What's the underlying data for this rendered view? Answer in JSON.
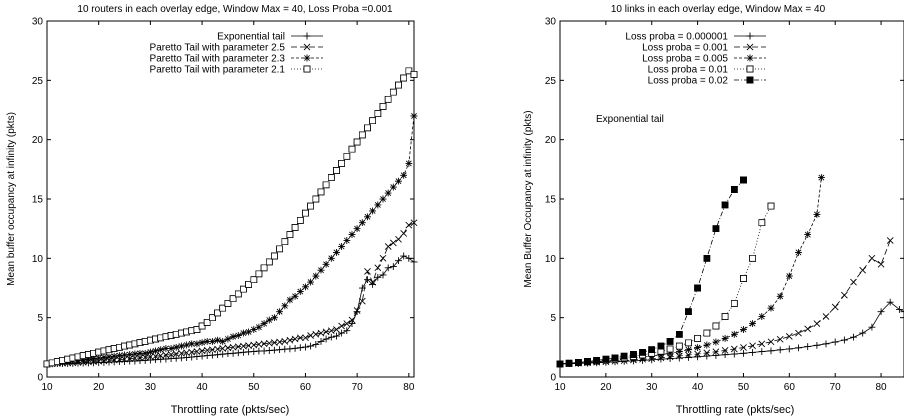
{
  "chart_data": [
    {
      "type": "line",
      "title": "10 routers in each overlay edge, Window Max = 40, Loss Proba =0.001",
      "xlabel": "Throttling rate (pkts/sec)",
      "ylabel": "Mean buffer occupancy at infinity (pkts)",
      "xlim": [
        10,
        81
      ],
      "ylim": [
        0,
        30
      ],
      "xticks": [
        10,
        20,
        30,
        40,
        50,
        60,
        70,
        80
      ],
      "yticks": [
        0,
        5,
        10,
        15,
        20,
        25,
        30
      ],
      "grid": false,
      "legend": "top-left",
      "series": [
        {
          "name": "Exponential tail",
          "marker": "plus",
          "x": [
            10,
            11,
            12,
            13,
            14,
            15,
            16,
            17,
            18,
            19,
            20,
            21,
            22,
            23,
            24,
            25,
            26,
            27,
            28,
            29,
            30,
            31,
            32,
            33,
            34,
            35,
            36,
            37,
            38,
            39,
            40,
            41,
            42,
            43,
            44,
            45,
            46,
            47,
            48,
            49,
            50,
            51,
            52,
            53,
            54,
            55,
            56,
            57,
            58,
            59,
            60,
            61,
            62,
            63,
            64,
            65,
            66,
            67,
            68,
            69,
            70,
            71,
            72,
            73,
            74,
            75,
            76,
            77,
            78,
            79,
            80,
            81
          ],
          "values": [
            1.1,
            1.11,
            1.12,
            1.13,
            1.14,
            1.15,
            1.16,
            1.17,
            1.19,
            1.2,
            1.21,
            1.23,
            1.25,
            1.27,
            1.29,
            1.31,
            1.33,
            1.35,
            1.37,
            1.4,
            1.43,
            1.46,
            1.49,
            1.52,
            1.55,
            1.58,
            1.61,
            1.64,
            1.68,
            1.72,
            1.76,
            1.8,
            1.84,
            1.88,
            1.92,
            1.96,
            2.0,
            2.04,
            2.08,
            2.12,
            2.15,
            2.18,
            2.2,
            2.23,
            2.26,
            2.3,
            2.34,
            2.38,
            2.42,
            2.47,
            2.52,
            2.6,
            2.75,
            3.0,
            3.2,
            3.35,
            3.45,
            3.7,
            3.9,
            4.5,
            5.5,
            7.5,
            8.2,
            7.8,
            8.4,
            8.6,
            9.2,
            9.3,
            9.8,
            10.2,
            10.0,
            9.7
          ]
        },
        {
          "name": "Paretto Tail with parameter 2.5",
          "marker": "x",
          "x": [
            10,
            11,
            12,
            13,
            14,
            15,
            16,
            17,
            18,
            19,
            20,
            21,
            22,
            23,
            24,
            25,
            26,
            27,
            28,
            29,
            30,
            31,
            32,
            33,
            34,
            35,
            36,
            37,
            38,
            39,
            40,
            41,
            42,
            43,
            44,
            45,
            46,
            47,
            48,
            49,
            50,
            51,
            52,
            53,
            54,
            55,
            56,
            57,
            58,
            59,
            60,
            61,
            62,
            63,
            64,
            65,
            66,
            67,
            68,
            69,
            70,
            71,
            72,
            73,
            74,
            75,
            76,
            77,
            78,
            79,
            80,
            81
          ],
          "values": [
            1.1,
            1.12,
            1.14,
            1.16,
            1.18,
            1.2,
            1.22,
            1.24,
            1.27,
            1.3,
            1.33,
            1.36,
            1.4,
            1.43,
            1.47,
            1.5,
            1.54,
            1.58,
            1.62,
            1.66,
            1.7,
            1.75,
            1.8,
            1.85,
            1.9,
            1.95,
            2.0,
            2.05,
            2.1,
            2.15,
            2.2,
            2.25,
            2.3,
            2.35,
            2.4,
            2.45,
            2.5,
            2.55,
            2.6,
            2.65,
            2.7,
            2.75,
            2.8,
            2.85,
            2.9,
            2.95,
            3.0,
            3.1,
            3.2,
            3.3,
            3.3,
            3.5,
            3.6,
            3.7,
            3.8,
            3.9,
            4.0,
            4.3,
            4.5,
            4.8,
            5.6,
            6.4,
            8.9,
            8.0,
            9.2,
            10.0,
            11.0,
            11.3,
            11.6,
            12.1,
            12.8,
            13.0
          ]
        },
        {
          "name": "Paretto Tail with parameter 2.3",
          "marker": "star",
          "x": [
            10,
            11,
            12,
            13,
            14,
            15,
            16,
            17,
            18,
            19,
            20,
            21,
            22,
            23,
            24,
            25,
            26,
            27,
            28,
            29,
            30,
            31,
            32,
            33,
            34,
            35,
            36,
            37,
            38,
            39,
            40,
            41,
            42,
            43,
            44,
            45,
            46,
            47,
            48,
            49,
            50,
            51,
            52,
            53,
            54,
            55,
            56,
            57,
            58,
            59,
            60,
            61,
            62,
            63,
            64,
            65,
            66,
            67,
            68,
            69,
            70,
            71,
            72,
            73,
            74,
            75,
            76,
            77,
            78,
            79,
            80,
            81
          ],
          "values": [
            1.1,
            1.15,
            1.2,
            1.25,
            1.3,
            1.35,
            1.4,
            1.45,
            1.5,
            1.55,
            1.6,
            1.65,
            1.7,
            1.75,
            1.8,
            1.85,
            1.9,
            1.95,
            2.0,
            2.0,
            2.1,
            2.2,
            2.3,
            2.4,
            2.4,
            2.5,
            2.6,
            2.7,
            2.8,
            2.8,
            2.9,
            3.0,
            3.0,
            3.1,
            3.0,
            3.2,
            3.4,
            3.5,
            3.7,
            3.8,
            4.0,
            4.2,
            4.5,
            4.8,
            5.0,
            5.5,
            6.0,
            6.5,
            6.8,
            7.2,
            7.6,
            8.0,
            8.5,
            9.0,
            9.5,
            10.0,
            10.5,
            11.0,
            11.5,
            12.0,
            12.5,
            13.0,
            13.5,
            14.0,
            14.5,
            15.0,
            15.5,
            16.0,
            16.5,
            17.0,
            18.0,
            22.0
          ]
        },
        {
          "name": "Paretto Tail with parameter 2.1",
          "marker": "square",
          "x": [
            10,
            11,
            12,
            13,
            14,
            15,
            16,
            17,
            18,
            19,
            20,
            21,
            22,
            23,
            24,
            25,
            26,
            27,
            28,
            29,
            30,
            31,
            32,
            33,
            34,
            35,
            36,
            37,
            38,
            39,
            40,
            41,
            42,
            43,
            44,
            45,
            46,
            47,
            48,
            49,
            50,
            51,
            52,
            53,
            54,
            55,
            56,
            57,
            58,
            59,
            60,
            61,
            62,
            63,
            64,
            65,
            66,
            67,
            68,
            69,
            70,
            71,
            72,
            73,
            74,
            75,
            76,
            77,
            78,
            79,
            80,
            81
          ],
          "values": [
            1.1,
            1.2,
            1.3,
            1.4,
            1.5,
            1.6,
            1.7,
            1.8,
            1.9,
            2.0,
            2.1,
            2.2,
            2.3,
            2.4,
            2.5,
            2.6,
            2.7,
            2.8,
            2.9,
            3.0,
            3.1,
            3.2,
            3.3,
            3.4,
            3.5,
            3.6,
            3.7,
            3.8,
            3.9,
            4.0,
            4.3,
            4.6,
            5.0,
            5.4,
            5.8,
            6.2,
            6.6,
            7.0,
            7.4,
            7.8,
            8.2,
            8.7,
            9.2,
            9.7,
            10.2,
            10.8,
            11.4,
            12.0,
            12.6,
            13.2,
            13.8,
            14.4,
            15.0,
            15.6,
            16.2,
            16.8,
            17.4,
            18.0,
            18.6,
            19.2,
            19.8,
            20.4,
            21.0,
            21.6,
            22.2,
            22.8,
            23.4,
            24.0,
            24.6,
            25.2,
            25.8,
            25.5
          ]
        }
      ]
    },
    {
      "type": "line",
      "title": "10 links in each overlay edge, Window Max = 40",
      "xlabel": "Throttling rate (pkts/sec)",
      "ylabel": "Mean Buffer Occupancy at infinity (pkts)",
      "xlim": [
        10,
        85
      ],
      "ylim": [
        0,
        30
      ],
      "xticks": [
        10,
        20,
        30,
        40,
        50,
        60,
        70,
        80
      ],
      "yticks": [
        0,
        5,
        10,
        15,
        20,
        25,
        30
      ],
      "grid": false,
      "legend": "top-left",
      "annotation": "Exponential tail",
      "series": [
        {
          "name": "Loss proba = 0.000001",
          "marker": "plus",
          "x": [
            10,
            12,
            14,
            16,
            18,
            20,
            22,
            24,
            26,
            28,
            30,
            32,
            34,
            36,
            38,
            40,
            42,
            44,
            46,
            48,
            50,
            52,
            54,
            56,
            58,
            60,
            62,
            64,
            66,
            68,
            70,
            72,
            74,
            76,
            78,
            80,
            82,
            84,
            85
          ],
          "values": [
            1.1,
            1.12,
            1.14,
            1.17,
            1.2,
            1.24,
            1.28,
            1.32,
            1.36,
            1.4,
            1.45,
            1.5,
            1.55,
            1.6,
            1.65,
            1.7,
            1.76,
            1.82,
            1.88,
            1.94,
            2.0,
            2.07,
            2.14,
            2.21,
            2.29,
            2.37,
            2.46,
            2.56,
            2.67,
            2.8,
            2.95,
            3.12,
            3.35,
            3.7,
            4.2,
            5.5,
            6.3,
            5.7,
            5.5
          ]
        },
        {
          "name": "Loss proba = 0.001",
          "marker": "x",
          "x": [
            10,
            12,
            14,
            16,
            18,
            20,
            22,
            24,
            26,
            28,
            30,
            32,
            34,
            36,
            38,
            40,
            42,
            44,
            46,
            48,
            50,
            52,
            54,
            56,
            58,
            60,
            62,
            64,
            66,
            68,
            70,
            72,
            74,
            76,
            78,
            80,
            82
          ],
          "values": [
            1.1,
            1.13,
            1.16,
            1.2,
            1.24,
            1.28,
            1.33,
            1.38,
            1.43,
            1.49,
            1.55,
            1.62,
            1.69,
            1.77,
            1.85,
            1.94,
            2.03,
            2.13,
            2.24,
            2.36,
            2.49,
            2.63,
            2.79,
            2.97,
            3.18,
            3.42,
            3.7,
            4.05,
            4.5,
            5.1,
            5.9,
            6.9,
            8.0,
            9.0,
            10.0,
            9.5,
            11.5
          ]
        },
        {
          "name": "Loss proba = 0.005",
          "marker": "star",
          "x": [
            10,
            12,
            14,
            16,
            18,
            20,
            22,
            24,
            26,
            28,
            30,
            32,
            34,
            36,
            38,
            40,
            42,
            44,
            46,
            48,
            50,
            52,
            54,
            56,
            58,
            60,
            62,
            64,
            66,
            67
          ],
          "values": [
            1.1,
            1.14,
            1.19,
            1.24,
            1.3,
            1.36,
            1.43,
            1.5,
            1.58,
            1.67,
            1.77,
            1.88,
            2.0,
            2.14,
            2.3,
            2.48,
            2.7,
            2.95,
            3.25,
            3.6,
            4.0,
            4.5,
            5.1,
            5.8,
            6.8,
            8.5,
            10.5,
            12.0,
            13.7,
            16.8
          ]
        },
        {
          "name": "Loss proba = 0.01",
          "marker": "square",
          "x": [
            10,
            12,
            14,
            16,
            18,
            20,
            22,
            24,
            26,
            28,
            30,
            32,
            34,
            36,
            38,
            40,
            42,
            44,
            46,
            48,
            50,
            52,
            54,
            56
          ],
          "values": [
            1.1,
            1.15,
            1.21,
            1.28,
            1.35,
            1.43,
            1.52,
            1.62,
            1.73,
            1.86,
            2.0,
            2.17,
            2.36,
            2.6,
            2.88,
            3.25,
            3.7,
            4.3,
            5.1,
            6.2,
            8.3,
            10.0,
            13.0,
            14.4
          ]
        },
        {
          "name": "Loss proba = 0.02",
          "marker": "filled-square",
          "x": [
            10,
            12,
            14,
            16,
            18,
            20,
            22,
            24,
            26,
            28,
            30,
            32,
            34,
            36,
            38,
            40,
            42,
            44,
            46,
            48,
            50
          ],
          "values": [
            1.1,
            1.16,
            1.23,
            1.31,
            1.4,
            1.5,
            1.62,
            1.75,
            1.9,
            2.08,
            2.3,
            2.6,
            3.0,
            3.6,
            5.5,
            7.5,
            10.0,
            12.5,
            14.5,
            15.8,
            16.6
          ]
        }
      ]
    }
  ]
}
